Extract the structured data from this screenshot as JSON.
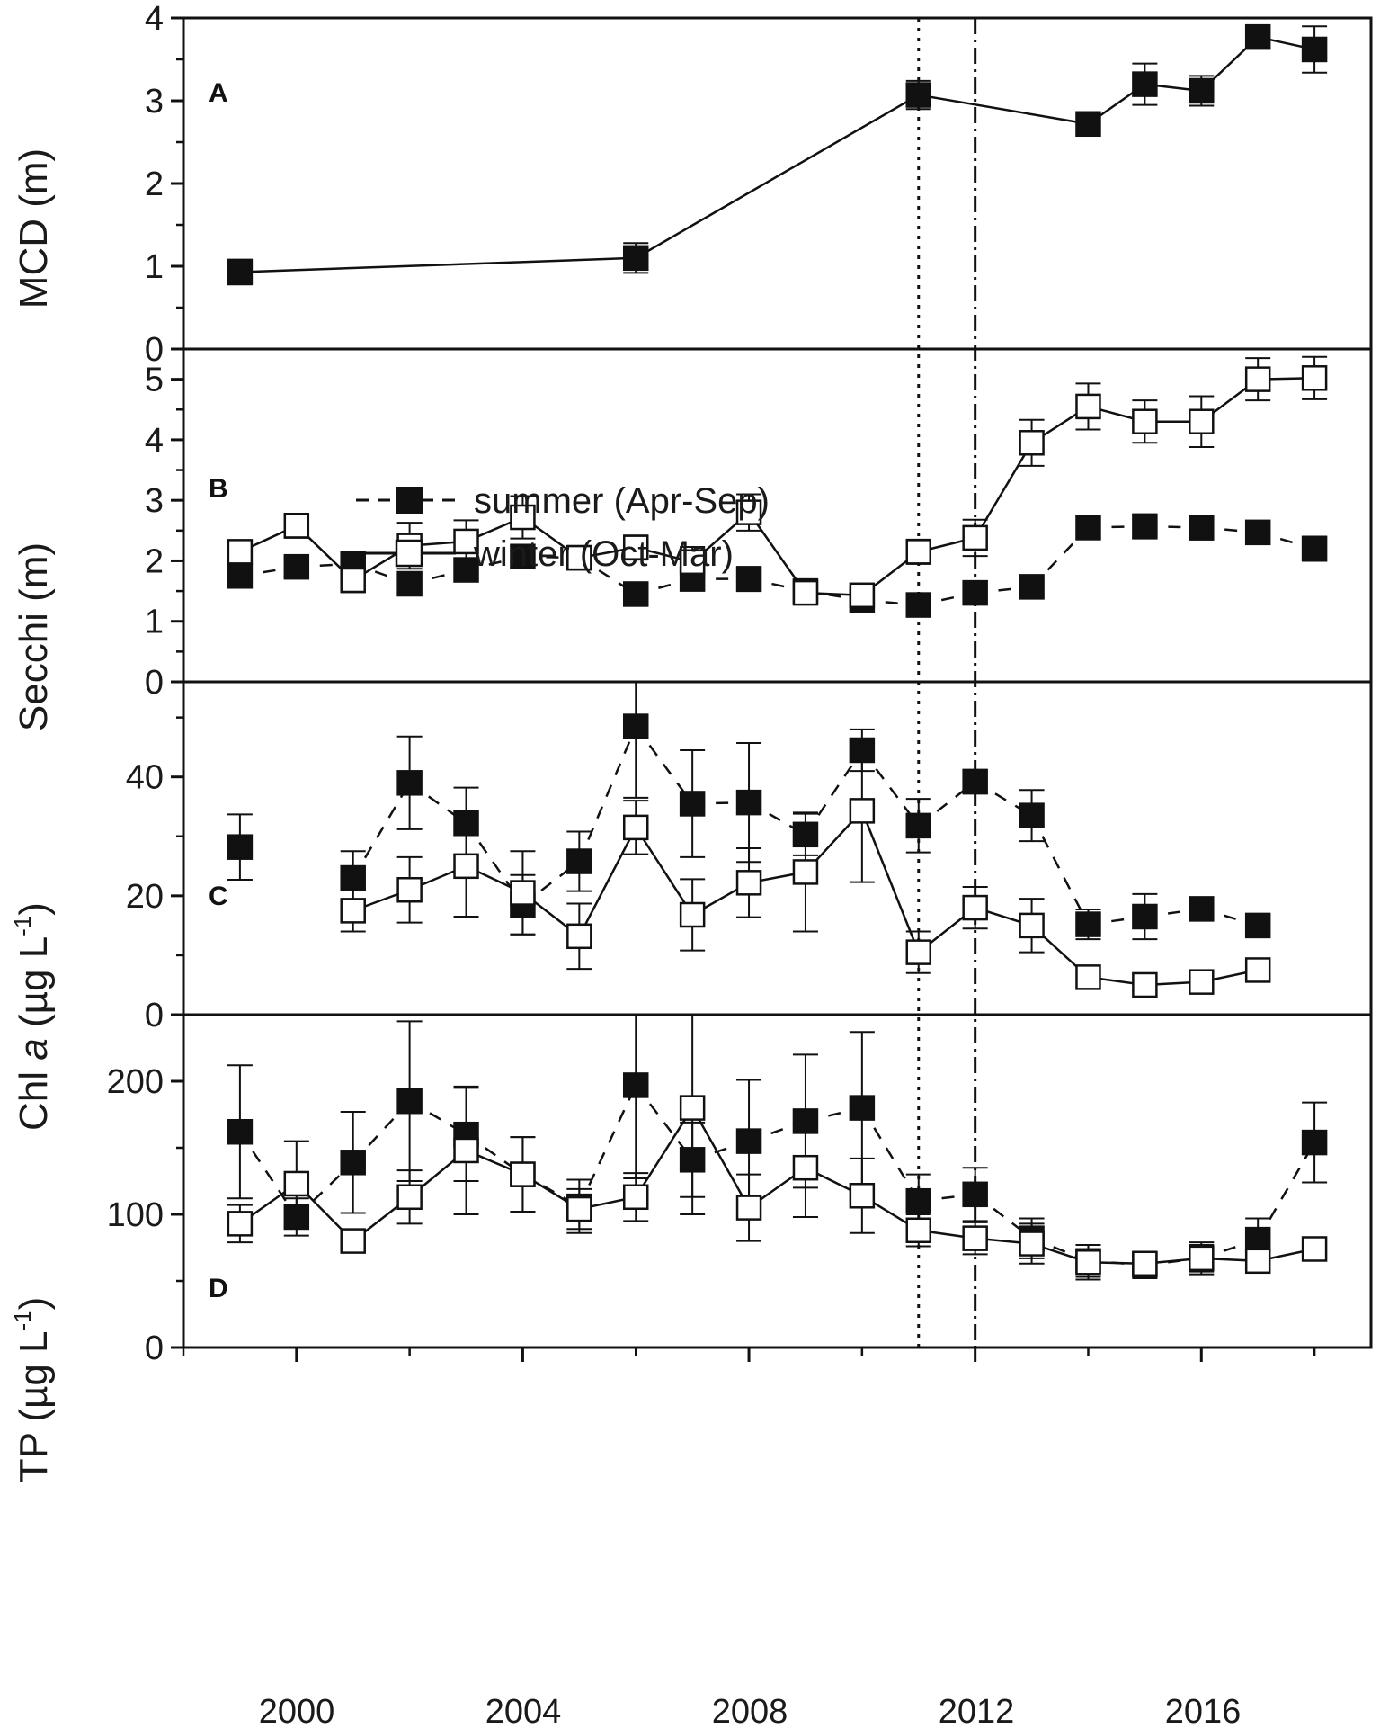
{
  "chart_data": [
    {
      "panel": "A",
      "type": "line",
      "ylabel": "MCD (m)",
      "ylim": [
        0,
        4
      ],
      "yticks": [
        0,
        1,
        2,
        3,
        4
      ],
      "series": [
        {
          "name": "summer (Apr-Sep)",
          "marker": "filled-square",
          "line": "solid",
          "points": [
            {
              "x": 1999,
              "y": 0.93,
              "err": 0.15
            },
            {
              "x": 2006,
              "y": 1.1,
              "err": 0.18
            },
            {
              "x": 2011,
              "y": 3.07,
              "err": 0.17
            },
            {
              "x": 2014,
              "y": 2.72,
              "err": 0.06
            },
            {
              "x": 2015,
              "y": 3.2,
              "err": 0.25
            },
            {
              "x": 2016,
              "y": 3.12,
              "err": 0.18
            },
            {
              "x": 2017,
              "y": 3.77,
              "err": 0.12
            },
            {
              "x": 2018,
              "y": 3.62,
              "err": 0.28
            }
          ]
        }
      ]
    },
    {
      "panel": "B",
      "type": "line",
      "ylabel": "Secchi (m)",
      "ylim": [
        0,
        5.5
      ],
      "yticks": [
        0,
        1,
        2,
        3,
        4,
        5
      ],
      "series": [
        {
          "name": "summer (Apr-Sep)",
          "marker": "filled-square",
          "line": "dashed",
          "points": [
            {
              "x": 1999,
              "y": 1.75,
              "err": 0.12
            },
            {
              "x": 2000,
              "y": 1.9,
              "err": 0.15
            },
            {
              "x": 2001,
              "y": 1.95,
              "err": 0.1
            },
            {
              "x": 2002,
              "y": 1.62,
              "err": 0.1
            },
            {
              "x": 2003,
              "y": 1.85,
              "err": 0.12
            },
            {
              "x": 2004,
              "y": 2.07,
              "err": 0.1
            },
            {
              "x": 2005,
              "y": 2.05,
              "err": 0.1
            },
            {
              "x": 2006,
              "y": 1.45,
              "err": 0.15
            },
            {
              "x": 2007,
              "y": 1.7,
              "err": 0.12
            },
            {
              "x": 2008,
              "y": 1.7,
              "err": 0.2
            },
            {
              "x": 2009,
              "y": 1.5,
              "err": 0.1
            },
            {
              "x": 2010,
              "y": 1.35,
              "err": 0.1
            },
            {
              "x": 2011,
              "y": 1.27,
              "err": 0.1
            },
            {
              "x": 2012,
              "y": 1.47,
              "err": 0.12
            },
            {
              "x": 2013,
              "y": 1.57,
              "err": 0.1
            },
            {
              "x": 2014,
              "y": 2.55,
              "err": 0.18
            },
            {
              "x": 2015,
              "y": 2.57,
              "err": 0.2
            },
            {
              "x": 2016,
              "y": 2.55,
              "err": 0.2
            },
            {
              "x": 2017,
              "y": 2.47,
              "err": 0.18
            },
            {
              "x": 2018,
              "y": 2.2,
              "err": 0.2
            }
          ]
        },
        {
          "name": "winter (Oct-Mar)",
          "marker": "open-square",
          "line": "solid",
          "points": [
            {
              "x": 1999,
              "y": 2.15,
              "err": 0.15
            },
            {
              "x": 2000,
              "y": 2.58,
              "err": 0.2
            },
            {
              "x": 2001,
              "y": 1.68,
              "err": 0.2
            },
            {
              "x": 2002,
              "y": 2.25,
              "err": 0.38
            },
            {
              "x": 2003,
              "y": 2.32,
              "err": 0.35
            },
            {
              "x": 2004,
              "y": 2.72,
              "err": 0.35
            },
            {
              "x": 2005,
              "y": 2.05,
              "err": 0.1
            },
            {
              "x": 2006,
              "y": 2.22,
              "err": 0.2
            },
            {
              "x": 2007,
              "y": 1.98,
              "err": 0.25
            },
            {
              "x": 2008,
              "y": 2.8,
              "err": 0.3
            },
            {
              "x": 2009,
              "y": 1.47,
              "err": 0.15
            },
            {
              "x": 2010,
              "y": 1.43,
              "err": 0.15
            },
            {
              "x": 2011,
              "y": 2.15,
              "err": 0.2
            },
            {
              "x": 2012,
              "y": 2.38,
              "err": 0.3
            },
            {
              "x": 2013,
              "y": 3.95,
              "err": 0.38
            },
            {
              "x": 2014,
              "y": 4.55,
              "err": 0.38
            },
            {
              "x": 2015,
              "y": 4.3,
              "err": 0.35
            },
            {
              "x": 2016,
              "y": 4.3,
              "err": 0.42
            },
            {
              "x": 2017,
              "y": 5.0,
              "err": 0.35
            },
            {
              "x": 2018,
              "y": 5.02,
              "err": 0.35
            }
          ]
        }
      ]
    },
    {
      "panel": "C",
      "type": "line",
      "ylabel_main": "Chl ",
      "ylabel_italic": "a",
      "ylabel_unit": " (µg L",
      "ylabel_sup": "-1",
      "ylabel_close": ")",
      "ylim": [
        0,
        56
      ],
      "yticks": [
        0,
        20,
        40
      ],
      "series": [
        {
          "name": "summer (Apr-Sep)",
          "marker": "filled-square",
          "line": "dashed",
          "points": [
            {
              "x": 1999,
              "y": 28.2,
              "err": 5.5
            },
            {
              "x": 2001,
              "y": 23.0,
              "err": 4.5
            },
            {
              "x": 2002,
              "y": 39.0,
              "err": 7.8
            },
            {
              "x": 2003,
              "y": 32.2,
              "err": 6.0
            },
            {
              "x": 2004,
              "y": 18.5,
              "err": 5.0
            },
            {
              "x": 2005,
              "y": 25.8,
              "err": 5.0
            },
            {
              "x": 2006,
              "y": 48.5,
              "err": 12.0
            },
            {
              "x": 2007,
              "y": 35.5,
              "err": 9.0
            },
            {
              "x": 2008,
              "y": 35.7,
              "err": 10.0
            },
            {
              "x": 2009,
              "y": 30.3,
              "err": 3.5
            },
            {
              "x": 2010,
              "y": 44.5,
              "err": 3.5
            },
            {
              "x": 2011,
              "y": 31.8,
              "err": 4.5
            },
            {
              "x": 2012,
              "y": 39.2,
              "err": 2.0
            },
            {
              "x": 2013,
              "y": 33.5,
              "err": 4.3
            },
            {
              "x": 2014,
              "y": 15.2,
              "err": 2.5
            },
            {
              "x": 2015,
              "y": 16.5,
              "err": 3.8
            },
            {
              "x": 2016,
              "y": 17.8,
              "err": 1.2
            },
            {
              "x": 2017,
              "y": 15.0,
              "err": 1.5
            }
          ]
        },
        {
          "name": "winter (Oct-Mar)",
          "marker": "open-square",
          "line": "solid",
          "points": [
            {
              "x": 2001,
              "y": 17.5,
              "err": 3.5
            },
            {
              "x": 2002,
              "y": 21.0,
              "err": 5.5
            },
            {
              "x": 2003,
              "y": 25.0,
              "err": 8.5
            },
            {
              "x": 2004,
              "y": 20.5,
              "err": 7.0
            },
            {
              "x": 2005,
              "y": 13.2,
              "err": 5.5
            },
            {
              "x": 2006,
              "y": 31.5,
              "err": 4.5
            },
            {
              "x": 2007,
              "y": 16.8,
              "err": 6.0
            },
            {
              "x": 2008,
              "y": 22.2,
              "err": 5.8
            },
            {
              "x": 2009,
              "y": 24.0,
              "err": 10.0
            },
            {
              "x": 2010,
              "y": 34.3,
              "err": 12.0
            },
            {
              "x": 2011,
              "y": 10.5,
              "err": 3.5
            },
            {
              "x": 2012,
              "y": 18.0,
              "err": 3.5
            },
            {
              "x": 2013,
              "y": 15.0,
              "err": 4.5
            },
            {
              "x": 2014,
              "y": 6.3,
              "err": 1.2
            },
            {
              "x": 2015,
              "y": 5.0,
              "err": 1.0
            },
            {
              "x": 2016,
              "y": 5.5,
              "err": 1.0
            },
            {
              "x": 2017,
              "y": 7.5,
              "err": 1.0
            }
          ]
        }
      ]
    },
    {
      "panel": "D",
      "type": "line",
      "ylabel_main": "TP (µg L",
      "ylabel_sup": "-1",
      "ylabel_close": ")",
      "ylim": [
        0,
        250
      ],
      "yticks": [
        0,
        100,
        200
      ],
      "series": [
        {
          "name": "summer (Apr-Sep)",
          "marker": "filled-square",
          "line": "dashed",
          "points": [
            {
              "x": 1999,
              "y": 162,
              "err": 50
            },
            {
              "x": 2000,
              "y": 98,
              "err": 14
            },
            {
              "x": 2001,
              "y": 139,
              "err": 38
            },
            {
              "x": 2002,
              "y": 185,
              "err": 60
            },
            {
              "x": 2003,
              "y": 160,
              "err": 35
            },
            {
              "x": 2004,
              "y": 130,
              "err": 28
            },
            {
              "x": 2005,
              "y": 106,
              "err": 20
            },
            {
              "x": 2006,
              "y": 197,
              "err": 70
            },
            {
              "x": 2007,
              "y": 141,
              "err": 28
            },
            {
              "x": 2008,
              "y": 155,
              "err": 46
            },
            {
              "x": 2009,
              "y": 170,
              "err": 50
            },
            {
              "x": 2010,
              "y": 180,
              "err": 57
            },
            {
              "x": 2011,
              "y": 110,
              "err": 20
            },
            {
              "x": 2012,
              "y": 115,
              "err": 20
            },
            {
              "x": 2013,
              "y": 82,
              "err": 15
            },
            {
              "x": 2014,
              "y": 65,
              "err": 12
            },
            {
              "x": 2015,
              "y": 62,
              "err": 10
            },
            {
              "x": 2016,
              "y": 67,
              "err": 10
            },
            {
              "x": 2017,
              "y": 81,
              "err": 16
            },
            {
              "x": 2018,
              "y": 154,
              "err": 30
            }
          ]
        },
        {
          "name": "winter (Oct-Mar)",
          "marker": "open-square",
          "line": "solid",
          "points": [
            {
              "x": 1999,
              "y": 93,
              "err": 14
            },
            {
              "x": 2000,
              "y": 123,
              "err": 32
            },
            {
              "x": 2001,
              "y": 80,
              "err": 8
            },
            {
              "x": 2002,
              "y": 113,
              "err": 20
            },
            {
              "x": 2003,
              "y": 148,
              "err": 48
            },
            {
              "x": 2004,
              "y": 130,
              "err": 28
            },
            {
              "x": 2005,
              "y": 104,
              "err": 15
            },
            {
              "x": 2006,
              "y": 113,
              "err": 18
            },
            {
              "x": 2007,
              "y": 180,
              "err": 80
            },
            {
              "x": 2008,
              "y": 105,
              "err": 25
            },
            {
              "x": 2009,
              "y": 135,
              "err": 37
            },
            {
              "x": 2010,
              "y": 114,
              "err": 28
            },
            {
              "x": 2011,
              "y": 88,
              "err": 12
            },
            {
              "x": 2012,
              "y": 82,
              "err": 12
            },
            {
              "x": 2013,
              "y": 78,
              "err": 15
            },
            {
              "x": 2014,
              "y": 64,
              "err": 13
            },
            {
              "x": 2015,
              "y": 63,
              "err": 8
            },
            {
              "x": 2016,
              "y": 67,
              "err": 12
            },
            {
              "x": 2017,
              "y": 65,
              "err": 8
            },
            {
              "x": 2018,
              "y": 74,
              "err": 5
            }
          ]
        }
      ]
    }
  ],
  "x_axis": {
    "xlim": [
      1998,
      2019
    ],
    "tick_labels": [
      "2000",
      "2004",
      "2008",
      "2012",
      "2016"
    ],
    "tick_values": [
      2000,
      2004,
      2008,
      2012,
      2016
    ],
    "minor_ticks": [
      1998,
      2002,
      2006,
      2010,
      2014,
      2018
    ]
  },
  "reference_lines": [
    {
      "x": 2011,
      "style": "dotted"
    },
    {
      "x": 2012,
      "style": "dash-dot"
    }
  ],
  "legend": {
    "panel": "B",
    "entries": [
      {
        "label": "summer (Apr-Sep)",
        "marker": "filled-square",
        "line": "dashed"
      },
      {
        "label": "winter (Oct-Mar)",
        "marker": "open-square",
        "line": "solid"
      }
    ]
  },
  "colors": {
    "ink": "#111111",
    "background": "#ffffff"
  }
}
